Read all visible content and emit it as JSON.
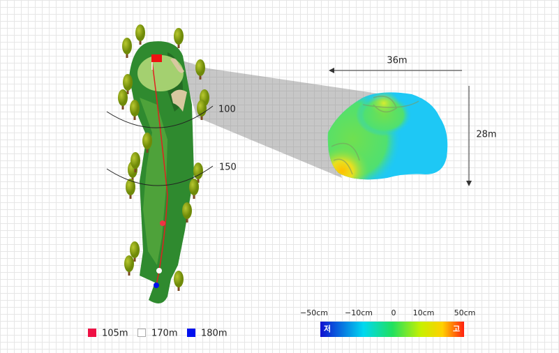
{
  "green_view": {
    "width_label": "36m",
    "depth_label": "28m"
  },
  "distance_arcs": [
    {
      "label": "100"
    },
    {
      "label": "150"
    }
  ],
  "legend": [
    {
      "label": "105m"
    },
    {
      "label": "170m"
    },
    {
      "label": "180m"
    }
  ],
  "color_scale": {
    "ticks": [
      "−50cm",
      "−10cm",
      "0",
      "10cm",
      "50cm"
    ],
    "low_label": "저",
    "high_label": "고"
  }
}
